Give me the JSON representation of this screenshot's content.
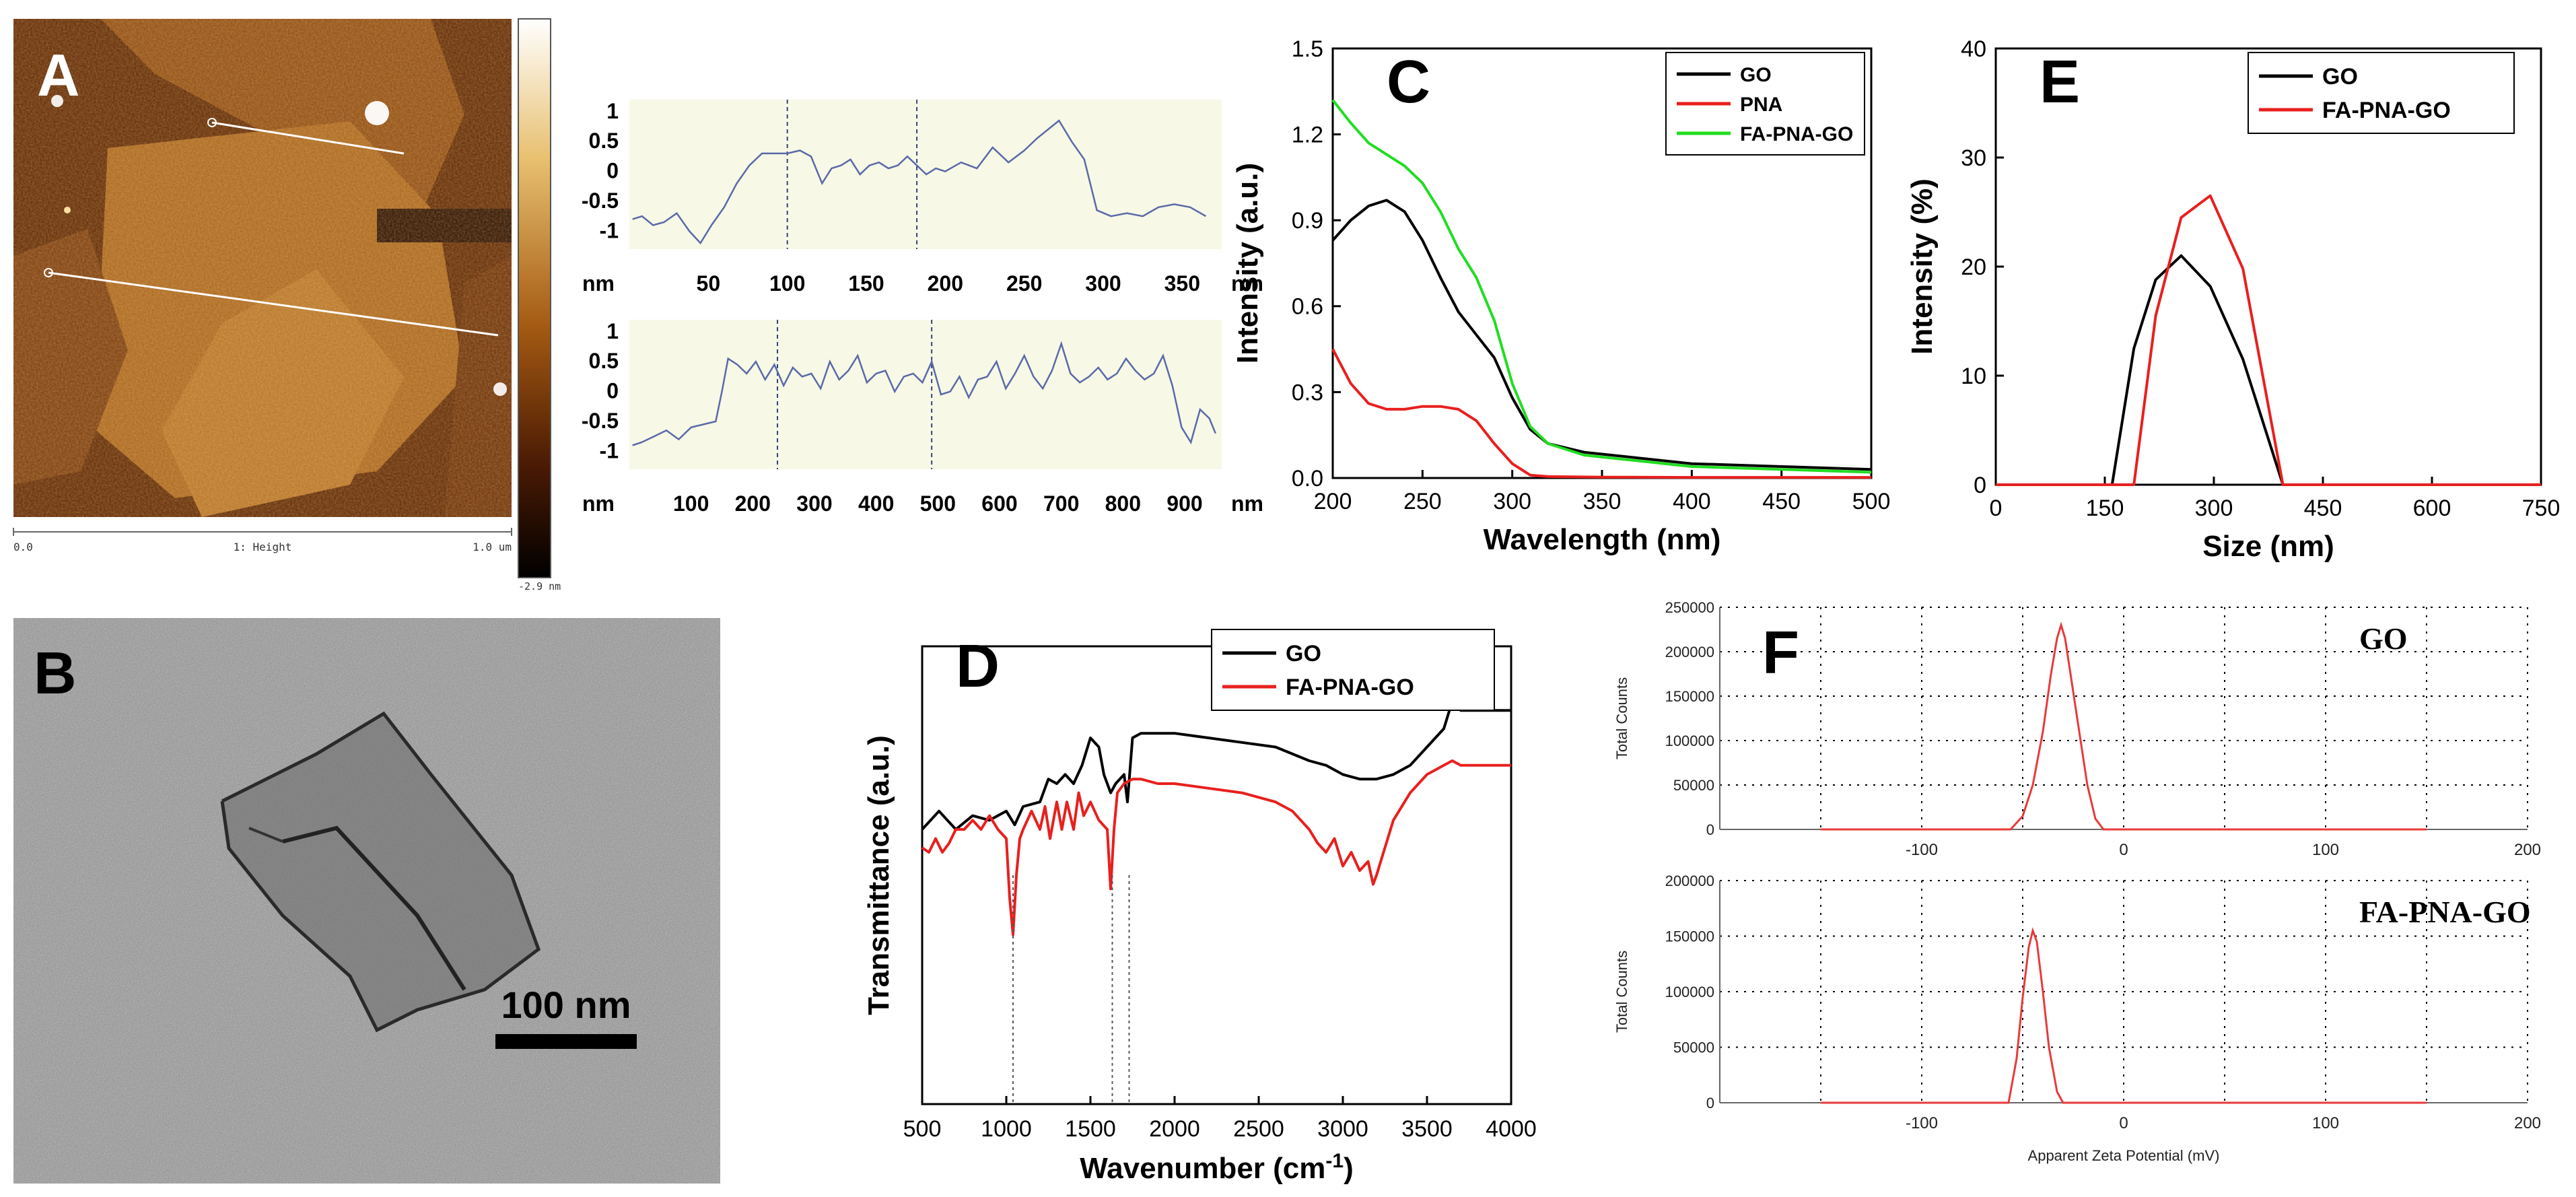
{
  "panel_letters": {
    "a": "A",
    "b": "B",
    "c": "C",
    "d": "D",
    "e": "E",
    "f": "F"
  },
  "colors": {
    "black": "#000000",
    "red": "#e8201e",
    "green": "#22dd22",
    "profile": "#5a6aa8",
    "profile_bg": "#f7f8e6",
    "zeta": "#e83a3a"
  },
  "panel_a": {
    "scale_left": "0.0",
    "scale_mid": "1: Height",
    "scale_right": "1.0 um",
    "colorbar_min": "-2.9 nm"
  },
  "panel_b": {
    "scalebar_label": "100 nm"
  },
  "chart_data": [
    {
      "panel": "A-profile-1",
      "type": "line",
      "x_unit": "nm",
      "y_unit": "nm",
      "xlim": [
        0,
        375
      ],
      "ylim": [
        -1.3,
        1.2
      ],
      "xticks": [
        50,
        100,
        150,
        200,
        250,
        300,
        350
      ],
      "xtick_labels": [
        "50",
        "100",
        "150",
        "200",
        "250",
        "300",
        "350"
      ],
      "yticks": [
        1,
        0.5,
        0,
        -0.5,
        -1
      ],
      "ytick_labels": [
        "1",
        "0.5",
        "0",
        "-0.5",
        "-1"
      ],
      "markers_x": [
        100,
        182
      ],
      "x": [
        2,
        8,
        15,
        22,
        30,
        38,
        45,
        52,
        60,
        68,
        76,
        84,
        92,
        100,
        108,
        115,
        122,
        128,
        134,
        140,
        146,
        152,
        158,
        164,
        170,
        176,
        182,
        188,
        194,
        200,
        210,
        220,
        230,
        240,
        250,
        258,
        265,
        272,
        280,
        288,
        296,
        305,
        315,
        325,
        335,
        345,
        355,
        365
      ],
      "y": [
        -0.8,
        -0.75,
        -0.9,
        -0.85,
        -0.7,
        -1.0,
        -1.2,
        -0.9,
        -0.6,
        -0.2,
        0.1,
        0.3,
        0.3,
        0.3,
        0.35,
        0.25,
        -0.2,
        0.05,
        0.1,
        0.2,
        -0.05,
        0.1,
        0.15,
        0.05,
        0.1,
        0.25,
        0.1,
        -0.05,
        0.05,
        0.0,
        0.15,
        0.05,
        0.4,
        0.15,
        0.35,
        0.55,
        0.7,
        0.85,
        0.5,
        0.2,
        -0.65,
        -0.75,
        -0.7,
        -0.75,
        -0.6,
        -0.55,
        -0.6,
        -0.75
      ]
    },
    {
      "panel": "A-profile-2",
      "type": "line",
      "x_unit": "nm",
      "y_unit": "nm",
      "xlim": [
        0,
        960
      ],
      "ylim": [
        -1.3,
        1.2
      ],
      "xticks": [
        100,
        200,
        300,
        400,
        500,
        600,
        700,
        800,
        900
      ],
      "xtick_labels": [
        "100",
        "200",
        "300",
        "400",
        "500",
        "600",
        "700",
        "800",
        "900"
      ],
      "yticks": [
        1,
        0.5,
        0,
        -0.5,
        -1
      ],
      "ytick_labels": [
        "1",
        "0.5",
        "0",
        "-0.5",
        "-1"
      ],
      "markers_x": [
        240,
        490
      ],
      "x": [
        5,
        20,
        40,
        60,
        80,
        100,
        120,
        140,
        150,
        160,
        175,
        190,
        205,
        220,
        235,
        250,
        265,
        280,
        295,
        310,
        325,
        340,
        355,
        370,
        385,
        400,
        415,
        430,
        445,
        460,
        475,
        490,
        505,
        520,
        535,
        550,
        565,
        580,
        595,
        610,
        625,
        640,
        655,
        670,
        685,
        700,
        715,
        730,
        745,
        760,
        775,
        790,
        805,
        820,
        835,
        850,
        865,
        880,
        895,
        910,
        925,
        940,
        950
      ],
      "y": [
        -0.9,
        -0.85,
        -0.75,
        -0.65,
        -0.8,
        -0.6,
        -0.55,
        -0.5,
        0.0,
        0.55,
        0.45,
        0.3,
        0.5,
        0.2,
        0.45,
        0.1,
        0.4,
        0.25,
        0.3,
        0.05,
        0.5,
        0.2,
        0.35,
        0.6,
        0.15,
        0.3,
        0.35,
        0.0,
        0.25,
        0.3,
        0.15,
        0.5,
        -0.05,
        0.0,
        0.25,
        -0.1,
        0.2,
        0.25,
        0.5,
        0.05,
        0.3,
        0.6,
        0.25,
        0.05,
        0.35,
        0.8,
        0.3,
        0.15,
        0.25,
        0.4,
        0.2,
        0.3,
        0.55,
        0.35,
        0.2,
        0.3,
        0.6,
        0.1,
        -0.6,
        -0.85,
        -0.3,
        -0.45,
        -0.7
      ]
    },
    {
      "panel": "C",
      "type": "line",
      "title": "",
      "xlabel": "Wavelength (nm)",
      "ylabel": "Intensity (a.u.)",
      "xlim": [
        200,
        500
      ],
      "ylim": [
        0,
        1.5
      ],
      "xticks": [
        200,
        250,
        300,
        350,
        400,
        450,
        500
      ],
      "yticks": [
        0.0,
        0.3,
        0.6,
        0.9,
        1.2,
        1.5
      ],
      "ytick_labels": [
        "0.0",
        "0.3",
        "0.6",
        "0.9",
        "1.2",
        "1.5"
      ],
      "legend": "top-right",
      "series": [
        {
          "name": "GO",
          "color": "#000000",
          "x": [
            200,
            210,
            220,
            230,
            240,
            250,
            260,
            270,
            280,
            290,
            300,
            310,
            320,
            340,
            370,
            400,
            450,
            500
          ],
          "y": [
            0.83,
            0.9,
            0.95,
            0.97,
            0.93,
            0.83,
            0.7,
            0.58,
            0.5,
            0.42,
            0.28,
            0.17,
            0.12,
            0.09,
            0.07,
            0.05,
            0.04,
            0.03
          ]
        },
        {
          "name": "PNA",
          "color": "#e8201e",
          "x": [
            200,
            210,
            220,
            230,
            240,
            250,
            260,
            270,
            280,
            290,
            300,
            310,
            320,
            350,
            400,
            450,
            500
          ],
          "y": [
            0.45,
            0.33,
            0.26,
            0.24,
            0.24,
            0.25,
            0.25,
            0.24,
            0.2,
            0.12,
            0.05,
            0.01,
            0.005,
            0.003,
            0.002,
            0.002,
            0.002
          ]
        },
        {
          "name": "FA-PNA-GO",
          "color": "#22dd22",
          "x": [
            200,
            210,
            220,
            230,
            240,
            250,
            260,
            270,
            280,
            290,
            300,
            310,
            320,
            340,
            370,
            400,
            450,
            500
          ],
          "y": [
            1.32,
            1.24,
            1.17,
            1.13,
            1.09,
            1.03,
            0.93,
            0.8,
            0.7,
            0.55,
            0.33,
            0.18,
            0.12,
            0.08,
            0.06,
            0.04,
            0.03,
            0.02
          ]
        }
      ]
    },
    {
      "panel": "D",
      "type": "line",
      "xlabel": "Wavenumber (cm",
      "xlabel_sup": "-1",
      "xlabel_end": ")",
      "ylabel": "Transmittance (a.u.)",
      "xlim": [
        500,
        4000
      ],
      "ylim": [
        0,
        1
      ],
      "xticks": [
        500,
        1000,
        1500,
        2000,
        2500,
        3000,
        3500,
        4000
      ],
      "legend": "top-center",
      "marker_lines_x": [
        1040,
        1630,
        1730
      ],
      "series": [
        {
          "name": "GO",
          "color": "#000000",
          "x": [
            500,
            600,
            700,
            800,
            900,
            1000,
            1050,
            1100,
            1200,
            1250,
            1300,
            1350,
            1400,
            1450,
            1500,
            1550,
            1580,
            1620,
            1650,
            1700,
            1720,
            1750,
            1800,
            2000,
            2200,
            2400,
            2600,
            2800,
            2900,
            3000,
            3100,
            3200,
            3300,
            3400,
            3500,
            3600,
            3650,
            3700,
            3800,
            3900,
            4000
          ],
          "y": [
            0.6,
            0.64,
            0.6,
            0.63,
            0.62,
            0.64,
            0.61,
            0.65,
            0.66,
            0.71,
            0.7,
            0.72,
            0.7,
            0.74,
            0.8,
            0.78,
            0.72,
            0.68,
            0.7,
            0.72,
            0.66,
            0.8,
            0.81,
            0.81,
            0.8,
            0.79,
            0.78,
            0.75,
            0.74,
            0.72,
            0.71,
            0.71,
            0.72,
            0.74,
            0.78,
            0.82,
            0.88,
            0.86,
            0.86,
            0.86,
            0.86
          ]
        },
        {
          "name": "FA-PNA-GO",
          "color": "#e8201e",
          "x": [
            500,
            540,
            580,
            620,
            660,
            700,
            750,
            800,
            850,
            900,
            950,
            1000,
            1020,
            1040,
            1060,
            1080,
            1100,
            1150,
            1200,
            1230,
            1260,
            1300,
            1330,
            1360,
            1400,
            1430,
            1460,
            1500,
            1550,
            1600,
            1620,
            1640,
            1660,
            1700,
            1750,
            1800,
            1900,
            2000,
            2200,
            2400,
            2600,
            2700,
            2800,
            2850,
            2900,
            2950,
            3000,
            3050,
            3100,
            3150,
            3180,
            3200,
            3250,
            3300,
            3400,
            3500,
            3600,
            3650,
            3700,
            3800,
            4000
          ],
          "y": [
            0.56,
            0.55,
            0.58,
            0.55,
            0.57,
            0.6,
            0.6,
            0.62,
            0.6,
            0.63,
            0.6,
            0.58,
            0.45,
            0.37,
            0.5,
            0.58,
            0.6,
            0.64,
            0.6,
            0.65,
            0.58,
            0.66,
            0.6,
            0.66,
            0.6,
            0.68,
            0.63,
            0.66,
            0.62,
            0.6,
            0.47,
            0.6,
            0.68,
            0.7,
            0.71,
            0.71,
            0.7,
            0.7,
            0.69,
            0.68,
            0.66,
            0.64,
            0.6,
            0.57,
            0.55,
            0.58,
            0.52,
            0.55,
            0.51,
            0.53,
            0.48,
            0.5,
            0.56,
            0.62,
            0.68,
            0.72,
            0.74,
            0.75,
            0.74,
            0.74,
            0.74
          ]
        }
      ]
    },
    {
      "panel": "E",
      "type": "line",
      "xlabel": "Size (nm)",
      "ylabel": "Intensity (%)",
      "xlim": [
        0,
        750
      ],
      "ylim": [
        0,
        40
      ],
      "xticks": [
        0,
        150,
        300,
        450,
        600,
        750
      ],
      "yticks": [
        0,
        10,
        20,
        30,
        40
      ],
      "legend": "top-center",
      "series": [
        {
          "name": "GO",
          "color": "#000000",
          "x": [
            0,
            160,
            190,
            220,
            255,
            295,
            340,
            395,
            750
          ],
          "y": [
            0,
            0,
            12.5,
            18.8,
            21.0,
            18.2,
            11.5,
            0,
            0
          ]
        },
        {
          "name": "FA-PNA-GO",
          "color": "#e8201e",
          "x": [
            0,
            190,
            220,
            255,
            295,
            340,
            395,
            750
          ],
          "y": [
            0,
            0,
            15.5,
            24.5,
            26.5,
            19.8,
            0,
            0
          ]
        }
      ]
    },
    {
      "panel": "F-top",
      "type": "line",
      "label": "GO",
      "ylabel": "Total Counts",
      "xlim": [
        -200,
        200
      ],
      "ylim": [
        0,
        250000
      ],
      "xticks": [
        -100,
        0,
        100,
        200
      ],
      "yticks": [
        0,
        50000,
        100000,
        150000,
        200000,
        250000
      ],
      "ytick_labels": [
        "0",
        "50000",
        "100000",
        "150000",
        "200000",
        "250000"
      ],
      "series": [
        {
          "name": "GO",
          "color": "#e83a3a",
          "x": [
            -150,
            -56,
            -50,
            -45,
            -40,
            -36,
            -33,
            -31,
            -29,
            -26,
            -22,
            -18,
            -14,
            -10,
            150
          ],
          "y": [
            0,
            0,
            15000,
            50000,
            110000,
            175000,
            215000,
            230000,
            215000,
            170000,
            110000,
            50000,
            12000,
            0,
            0
          ]
        }
      ]
    },
    {
      "panel": "F-bottom",
      "type": "line",
      "label": "FA-PNA-GO",
      "ylabel": "Total Counts",
      "xlabel": "Apparent Zeta Potential (mV)",
      "xlim": [
        -200,
        200
      ],
      "ylim": [
        0,
        200000
      ],
      "xticks": [
        -100,
        0,
        100,
        200
      ],
      "yticks": [
        0,
        50000,
        100000,
        150000,
        200000
      ],
      "ytick_labels": [
        "0",
        "50000",
        "100000",
        "150000",
        "200000"
      ],
      "series": [
        {
          "name": "FA-PNA-GO",
          "color": "#e83a3a",
          "x": [
            -150,
            -57,
            -53,
            -50,
            -47,
            -45,
            -43,
            -40,
            -37,
            -33,
            -30,
            150
          ],
          "y": [
            0,
            0,
            40000,
            95000,
            140000,
            155000,
            145000,
            100000,
            50000,
            10000,
            0,
            0
          ]
        }
      ]
    }
  ]
}
